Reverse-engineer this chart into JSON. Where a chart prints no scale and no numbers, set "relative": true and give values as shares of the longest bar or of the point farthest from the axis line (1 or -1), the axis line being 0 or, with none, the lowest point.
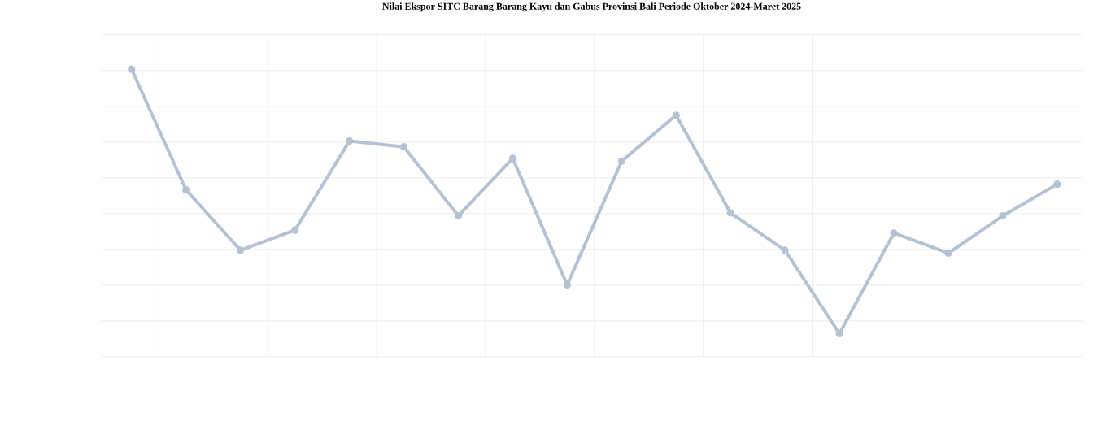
{
  "chart_data": {
    "type": "line",
    "title": "Nilai Ekspor SITC Barang Barang Kayu dan Gabus Provinsi Bali Periode Oktober 2024-Maret 2025",
    "categories": [
      null,
      null,
      null,
      null,
      null,
      null,
      null,
      null,
      null,
      null,
      null,
      null,
      null,
      null,
      null,
      null,
      null,
      null
    ],
    "values": [
      1,
      0.58,
      0.37,
      0.44,
      0.75,
      0.73,
      0.49,
      0.69,
      0.25,
      0.68,
      0.84,
      0.5,
      0.37,
      0.08,
      0.43,
      0.36,
      0.49,
      0.6
    ],
    "color": "#b4c2d4",
    "relative": true,
    "grid": true,
    "marker": "circle"
  }
}
